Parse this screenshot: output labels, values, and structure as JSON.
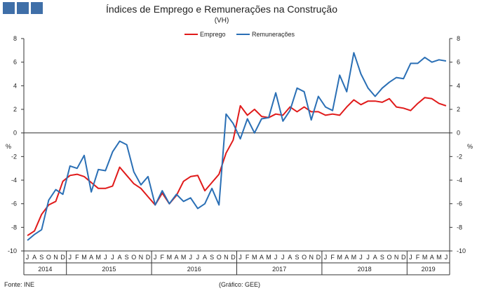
{
  "brand": {
    "color": "#3f6fa8"
  },
  "chart_data": {
    "type": "line",
    "title": "Índices de Emprego  e Remunerações na Construção",
    "subtitle": "(VH)",
    "ylabel_left": "%",
    "ylabel_right": "%",
    "ylim": [
      -10,
      8
    ],
    "yticks": [
      -10,
      -8,
      -6,
      -4,
      -2,
      0,
      2,
      4,
      6,
      8
    ],
    "grid": false,
    "legend": "top-center",
    "month_labels": [
      "J",
      "A",
      "S",
      "O",
      "N",
      "D",
      "J",
      "F",
      "M",
      "A",
      "M",
      "J",
      "J",
      "A",
      "S",
      "O",
      "N",
      "D",
      "J",
      "F",
      "M",
      "A",
      "M",
      "J",
      "J",
      "A",
      "S",
      "O",
      "N",
      "D",
      "J",
      "F",
      "M",
      "A",
      "M",
      "J",
      "J",
      "A",
      "S",
      "O",
      "N",
      "D",
      "J",
      "F",
      "M",
      "A",
      "M",
      "J",
      "J",
      "A",
      "S",
      "O",
      "N",
      "D",
      "J",
      "F",
      "M",
      "A",
      "M",
      "J"
    ],
    "years": [
      {
        "label": "2014",
        "start": 0,
        "end": 5
      },
      {
        "label": "2015",
        "start": 6,
        "end": 17
      },
      {
        "label": "2016",
        "start": 18,
        "end": 29
      },
      {
        "label": "2017",
        "start": 30,
        "end": 41
      },
      {
        "label": "2018",
        "start": 42,
        "end": 53
      },
      {
        "label": "2019",
        "start": 54,
        "end": 59
      }
    ],
    "series": [
      {
        "name": "Emprego",
        "color": "#e01a1a",
        "values": [
          -8.7,
          -8.3,
          -6.9,
          -6.1,
          -5.8,
          -4.1,
          -3.6,
          -3.5,
          -3.7,
          -4.2,
          -4.7,
          -4.7,
          -4.5,
          -2.9,
          -3.6,
          -4.3,
          -4.7,
          -5.4,
          -6.1,
          -5.1,
          -6.0,
          -5.3,
          -4.1,
          -3.7,
          -3.6,
          -4.9,
          -4.2,
          -3.5,
          -1.7,
          -0.6,
          2.3,
          1.5,
          2.0,
          1.4,
          1.3,
          1.6,
          1.5,
          2.2,
          1.8,
          2.2,
          1.8,
          1.8,
          1.5,
          1.6,
          1.5,
          2.2,
          2.8,
          2.4,
          2.7,
          2.7,
          2.6,
          2.9,
          2.2,
          2.1,
          1.9,
          2.5,
          3.0,
          2.9,
          2.5,
          2.3
        ]
      },
      {
        "name": "Remunerações",
        "color": "#2a6fb5",
        "values": [
          -9.1,
          -8.6,
          -8.2,
          -5.7,
          -4.8,
          -5.2,
          -2.8,
          -3.0,
          -1.9,
          -5.0,
          -3.1,
          -3.2,
          -1.6,
          -0.7,
          -1.0,
          -3.3,
          -4.4,
          -3.7,
          -6.1,
          -4.9,
          -6.0,
          -5.2,
          -5.8,
          -5.5,
          -6.4,
          -6.0,
          -4.7,
          -6.1,
          1.6,
          0.8,
          -0.5,
          1.2,
          0.0,
          1.2,
          1.3,
          3.4,
          1.0,
          1.9,
          3.8,
          3.5,
          1.1,
          3.1,
          2.2,
          1.9,
          4.9,
          3.5,
          6.8,
          5.0,
          3.8,
          3.1,
          3.8,
          4.3,
          4.7,
          4.6,
          5.9,
          5.9,
          6.4,
          6.0,
          6.2,
          6.1
        ]
      }
    ]
  },
  "footer": {
    "source": "Fonte: INE",
    "credit": "(Gráfico: GEE)"
  }
}
